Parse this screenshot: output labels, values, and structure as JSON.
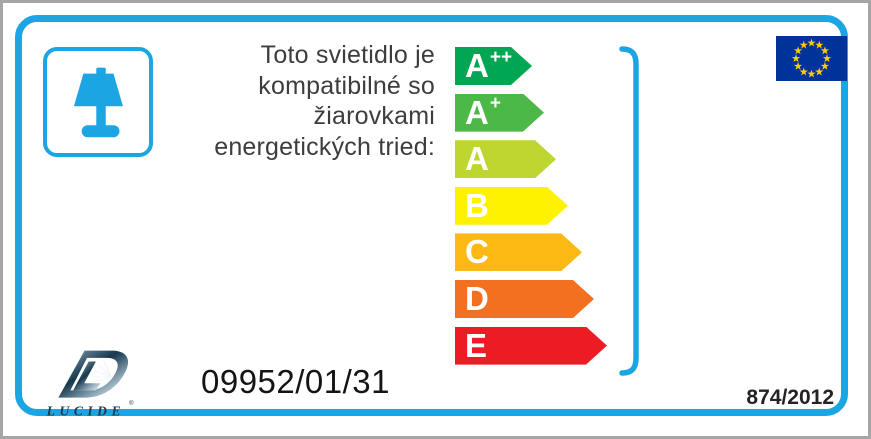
{
  "energy_label": {
    "intro_text": {
      "lines": [
        "Toto svietidlo je",
        "kompatibilné so",
        "žiarovkami",
        "energetických tried:"
      ]
    },
    "energy_classes": [
      {
        "grade": "A",
        "superscript": "++",
        "color": "#00A651",
        "arrow_width": 77
      },
      {
        "grade": "A",
        "superscript": "+",
        "color": "#4CB848",
        "arrow_width": 89
      },
      {
        "grade": "A",
        "superscript": "",
        "color": "#BFD630",
        "arrow_width": 101
      },
      {
        "grade": "B",
        "superscript": "",
        "color": "#FFF200",
        "arrow_width": 113
      },
      {
        "grade": "C",
        "superscript": "",
        "color": "#FDB913",
        "arrow_width": 127
      },
      {
        "grade": "D",
        "superscript": "",
        "color": "#F37021",
        "arrow_width": 139
      },
      {
        "grade": "E",
        "superscript": "",
        "color": "#ED1C24",
        "arrow_width": 152
      }
    ],
    "product_number": "09952/01/31",
    "regulation_number": "874/2012",
    "brand": {
      "name": "LUCIDE",
      "registered_mark": "®"
    },
    "icons": {
      "lamp": "table-lamp-icon",
      "flag": "eu-flag",
      "bracket": "class-range-bracket"
    },
    "colors": {
      "accent_cyan": "#1CA5E3",
      "eu_flag_blue": "#003399",
      "eu_flag_star_yellow": "#FFCC00",
      "text_dark": "#3D3D3D"
    }
  }
}
